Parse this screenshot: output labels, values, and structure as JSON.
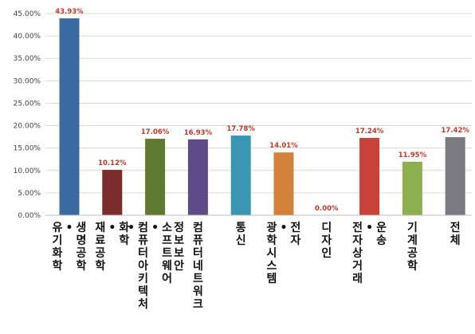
{
  "chart_data": {
    "type": "bar",
    "title": "",
    "xlabel": "",
    "ylabel": "",
    "ylim": [
      0,
      45
    ],
    "yticks": [
      "0.00%",
      "5.00%",
      "10.00%",
      "15.00%",
      "20.00%",
      "25.00%",
      "30.00%",
      "35.00%",
      "40.00%",
      "45.00%"
    ],
    "grid": true,
    "categories": [
      [
        "생명공학",
        "•",
        "유기화학"
      ],
      [
        "화학",
        "•",
        "재료공학"
      ],
      [
        "정보보안",
        "소프트웨어",
        "•",
        "컴퓨터아키텍처",
        "•"
      ],
      [
        "컴퓨터네트워크"
      ],
      [
        "통신"
      ],
      [
        "전자",
        "•",
        "광학시스템"
      ],
      [
        "디자인"
      ],
      [
        "운송",
        "•",
        "전자상거래"
      ],
      [
        "기계공학"
      ],
      [
        "전체"
      ]
    ],
    "values": [
      43.93,
      10.12,
      17.06,
      16.93,
      17.78,
      14.01,
      0.0,
      17.24,
      11.95,
      17.42
    ],
    "value_labels": [
      "43.93%",
      "10.12%",
      "17.06%",
      "16.93%",
      "17.78%",
      "14.01%",
      "0.00%",
      "17.24%",
      "11.95%",
      "17.42%"
    ],
    "colors": [
      "#3b6aa0",
      "#7b2c2c",
      "#5e7a2e",
      "#5e4a86",
      "#3a96b2",
      "#d3823a",
      "#d3823a",
      "#c9423a",
      "#8fb04e",
      "#7a7a80"
    ]
  }
}
